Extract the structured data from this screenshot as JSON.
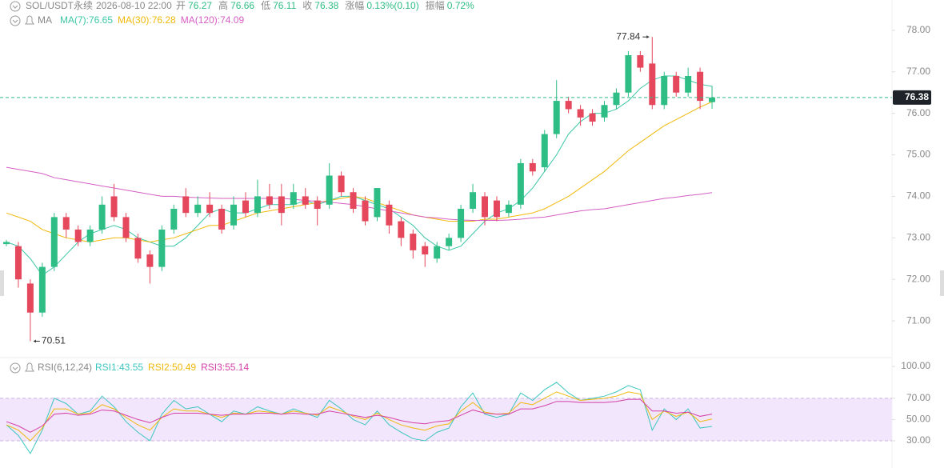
{
  "header": {
    "symbol": "SOL/USDT永续",
    "datetime": "2026-08-10 22:00",
    "items": [
      {
        "label": "开",
        "value": 76.27
      },
      {
        "label": "高",
        "value": 76.66
      },
      {
        "label": "低",
        "value": 76.11
      },
      {
        "label": "收",
        "value": 76.38
      },
      {
        "label": "涨幅",
        "value": "0.13%(0.10)"
      },
      {
        "label": "振幅",
        "value": "0.72%"
      }
    ]
  },
  "chart_data": [
    {
      "type": "candlestick",
      "indicator": "MA",
      "up_color": "#2ebd85",
      "down_color": "#e5475c",
      "open": [
        72.85,
        72.8,
        71.9,
        71.2,
        72.3,
        73.5,
        73.2,
        72.9,
        73.2,
        74.0,
        73.5,
        73.0,
        72.6,
        72.3,
        73.2,
        74.0,
        73.6,
        73.8,
        73.7,
        73.3,
        73.9,
        73.6,
        74.0,
        74.0,
        73.8,
        74.0,
        73.9,
        73.8,
        74.5,
        74.1,
        73.9,
        73.5,
        73.8,
        73.4,
        73.1,
        72.8,
        72.5,
        72.8,
        73.0,
        73.7,
        74.0,
        73.9,
        73.6,
        73.8,
        74.8,
        74.7,
        75.5,
        76.3,
        76.1,
        76.0,
        75.9,
        76.2,
        76.5,
        77.4,
        77.2,
        76.2,
        76.9,
        76.5,
        77.0,
        76.27
      ],
      "high": [
        72.95,
        72.9,
        72.0,
        72.4,
        73.6,
        73.6,
        73.3,
        73.3,
        74.0,
        74.3,
        73.6,
        73.1,
        72.7,
        73.3,
        73.8,
        74.2,
        74.0,
        74.1,
        73.8,
        74.0,
        74.1,
        74.4,
        74.3,
        74.3,
        74.3,
        74.2,
        74.0,
        74.8,
        74.6,
        74.2,
        74.0,
        74.2,
        73.9,
        73.5,
        73.2,
        72.9,
        72.9,
        73.1,
        73.8,
        74.3,
        74.1,
        74.0,
        73.9,
        74.9,
        74.9,
        75.6,
        76.8,
        76.4,
        76.2,
        76.1,
        76.3,
        76.6,
        77.5,
        77.5,
        77.84,
        77.0,
        77.0,
        77.1,
        77.1,
        76.66
      ],
      "low": [
        72.8,
        71.8,
        70.51,
        71.1,
        72.2,
        73.0,
        72.8,
        72.8,
        73.1,
        73.4,
        72.9,
        72.4,
        71.9,
        72.2,
        73.1,
        73.5,
        73.5,
        73.5,
        73.1,
        73.2,
        73.5,
        73.5,
        73.7,
        73.3,
        73.7,
        73.7,
        73.3,
        73.7,
        74.0,
        73.6,
        73.3,
        73.4,
        73.1,
        72.8,
        72.5,
        72.3,
        72.4,
        72.7,
        72.9,
        73.6,
        73.3,
        73.4,
        73.5,
        73.7,
        74.5,
        74.6,
        75.4,
        76.0,
        75.7,
        75.7,
        75.8,
        76.1,
        76.4,
        77.0,
        76.1,
        76.1,
        76.4,
        76.4,
        76.1,
        76.11
      ],
      "close": [
        72.9,
        72.0,
        71.2,
        72.3,
        73.5,
        73.2,
        72.9,
        73.2,
        73.8,
        73.5,
        73.0,
        72.5,
        72.3,
        73.2,
        73.7,
        73.6,
        73.8,
        73.6,
        73.2,
        73.8,
        73.6,
        74.0,
        73.8,
        73.6,
        74.1,
        73.8,
        73.7,
        74.5,
        74.1,
        73.7,
        73.4,
        74.2,
        73.3,
        73.0,
        72.7,
        72.6,
        72.8,
        73.0,
        73.7,
        74.1,
        73.5,
        73.5,
        73.8,
        74.8,
        74.6,
        75.5,
        76.3,
        76.1,
        75.9,
        75.8,
        76.2,
        76.5,
        77.4,
        77.1,
        76.2,
        76.9,
        76.5,
        76.9,
        76.3,
        76.38
      ],
      "series": [
        {
          "name": "MA(7):76.65",
          "color": "#3cc6a6",
          "values": [
            72.9,
            72.8,
            72.5,
            72.1,
            72.3,
            72.6,
            72.9,
            73.1,
            73.2,
            73.3,
            73.2,
            73.0,
            72.9,
            72.8,
            72.8,
            73.0,
            73.3,
            73.6,
            73.7,
            73.6,
            73.6,
            73.7,
            73.8,
            73.8,
            73.8,
            73.9,
            73.8,
            73.9,
            74.0,
            74.0,
            73.9,
            73.8,
            73.7,
            73.5,
            73.3,
            73.0,
            72.8,
            72.7,
            72.8,
            73.1,
            73.4,
            73.6,
            73.7,
            73.9,
            74.2,
            74.6,
            75.0,
            75.5,
            75.8,
            76.0,
            76.0,
            76.1,
            76.3,
            76.6,
            76.8,
            76.9,
            76.9,
            76.8,
            76.7,
            76.65
          ]
        },
        {
          "name": "MA(30):76.28",
          "color": "#f0b90b",
          "values": [
            73.6,
            73.5,
            73.4,
            73.2,
            73.1,
            73.0,
            72.95,
            72.9,
            72.95,
            73.0,
            73.0,
            72.95,
            72.9,
            72.95,
            73.0,
            73.1,
            73.2,
            73.3,
            73.3,
            73.4,
            73.5,
            73.6,
            73.65,
            73.7,
            73.75,
            73.8,
            73.85,
            73.9,
            73.95,
            74.0,
            73.95,
            73.85,
            73.75,
            73.65,
            73.55,
            73.5,
            73.45,
            73.4,
            73.4,
            73.4,
            73.45,
            73.45,
            73.5,
            73.55,
            73.6,
            73.7,
            73.85,
            74.0,
            74.2,
            74.4,
            74.6,
            74.85,
            75.1,
            75.3,
            75.5,
            75.7,
            75.85,
            76.0,
            76.15,
            76.28
          ]
        },
        {
          "name": "MA(120):74.09",
          "color": "#d45fc5",
          "values": [
            74.7,
            74.65,
            74.6,
            74.55,
            74.45,
            74.4,
            74.35,
            74.3,
            74.25,
            74.2,
            74.15,
            74.1,
            74.05,
            74.0,
            74.0,
            73.98,
            73.97,
            73.96,
            73.95,
            73.95,
            73.95,
            73.95,
            73.95,
            73.95,
            73.93,
            73.9,
            73.88,
            73.86,
            73.83,
            73.8,
            73.75,
            73.7,
            73.65,
            73.6,
            73.55,
            73.5,
            73.48,
            73.45,
            73.43,
            73.42,
            73.42,
            73.42,
            73.43,
            73.45,
            73.48,
            73.5,
            73.55,
            73.6,
            73.65,
            73.68,
            73.7,
            73.75,
            73.8,
            73.85,
            73.9,
            73.95,
            73.98,
            74.02,
            74.05,
            74.09
          ]
        }
      ],
      "ylim": [
        70.25,
        78.73
      ],
      "yticks": [
        {
          "value": 71,
          "label": "71.00"
        },
        {
          "value": 72,
          "label": "72.00"
        },
        {
          "value": 73,
          "label": "73.00"
        },
        {
          "value": 74,
          "label": "74.00"
        },
        {
          "value": 75,
          "label": "75.00"
        },
        {
          "value": 76,
          "label": "76.00"
        },
        {
          "value": 77,
          "label": "77.00"
        },
        {
          "value": 78,
          "label": "78.00"
        }
      ],
      "current_price": {
        "value": 76.38,
        "label": "76.38"
      },
      "annotations": [
        {
          "text": "77.84",
          "value": 77.84,
          "index": 54
        },
        {
          "text": "70.51",
          "value": 70.51,
          "index": 2
        }
      ]
    },
    {
      "type": "line",
      "indicator": "RSI(6,12,24)",
      "series": [
        {
          "name": "RSI1:43.55",
          "color": "#3cc6c0",
          "values": [
            45,
            35,
            18,
            40,
            70,
            65,
            55,
            58,
            72,
            62,
            48,
            38,
            30,
            55,
            68,
            60,
            62,
            55,
            48,
            58,
            55,
            62,
            58,
            55,
            60,
            56,
            52,
            68,
            60,
            50,
            45,
            58,
            45,
            38,
            32,
            30,
            38,
            42,
            62,
            75,
            55,
            52,
            55,
            75,
            68,
            78,
            85,
            75,
            68,
            70,
            72,
            76,
            82,
            78,
            40,
            60,
            50,
            60,
            42,
            43.55
          ]
        },
        {
          "name": "RSI2:50.49",
          "color": "#f0b90b",
          "values": [
            45,
            40,
            30,
            42,
            60,
            60,
            55,
            56,
            64,
            60,
            52,
            45,
            40,
            52,
            60,
            58,
            58,
            55,
            52,
            56,
            55,
            58,
            57,
            55,
            58,
            56,
            54,
            62,
            58,
            53,
            50,
            56,
            50,
            45,
            42,
            40,
            44,
            46,
            58,
            66,
            57,
            55,
            56,
            66,
            64,
            70,
            76,
            72,
            68,
            69,
            70,
            72,
            76,
            74,
            50,
            58,
            53,
            57,
            48,
            50.49
          ]
        },
        {
          "name": "RSI3:55.14",
          "color": "#d43fa8",
          "values": [
            48,
            44,
            38,
            44,
            55,
            56,
            54,
            55,
            59,
            58,
            54,
            50,
            47,
            52,
            56,
            56,
            56,
            55,
            54,
            55,
            55,
            56,
            56,
            55,
            56,
            55,
            55,
            58,
            56,
            54,
            52,
            54,
            52,
            49,
            47,
            46,
            48,
            49,
            54,
            59,
            56,
            55,
            55,
            60,
            60,
            63,
            67,
            67,
            66,
            66,
            66,
            67,
            69,
            69,
            58,
            58,
            56,
            57,
            53,
            55.14
          ]
        }
      ],
      "ylim": [
        4.4,
        104.5
      ],
      "band": [
        30,
        70
      ],
      "yticks": [
        {
          "value": 30,
          "label": "30.00"
        },
        {
          "value": 50,
          "label": "50.00"
        },
        {
          "value": 70,
          "label": "70.00"
        },
        {
          "value": 100,
          "label": "100.00"
        }
      ]
    }
  ]
}
